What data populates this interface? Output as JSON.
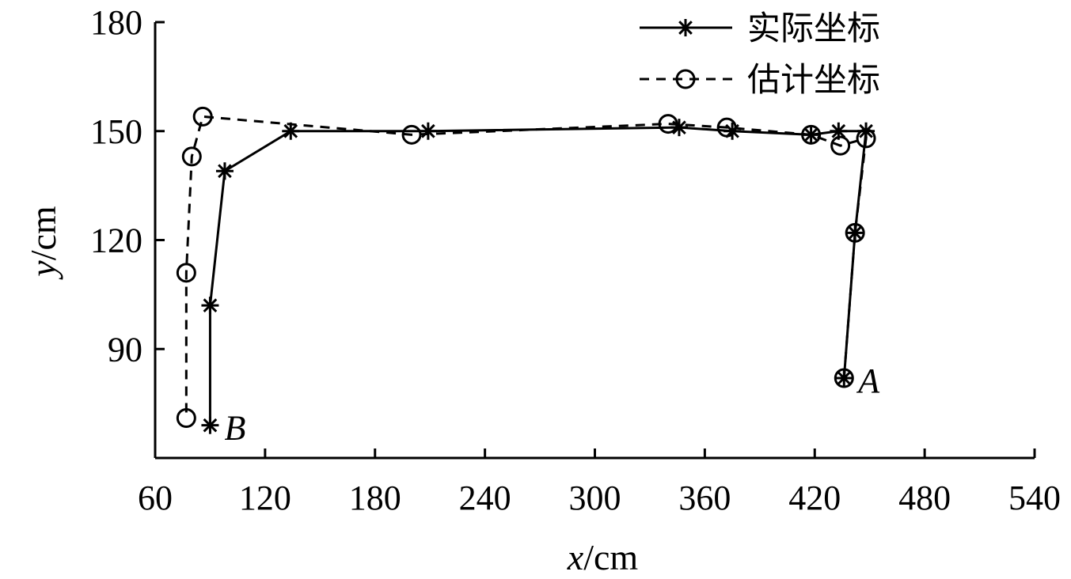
{
  "chart_data": {
    "type": "line",
    "xlabel": {
      "var": "x",
      "unit": "/cm"
    },
    "ylabel": {
      "var": "y",
      "unit": "/cm"
    },
    "xlim": [
      60,
      540
    ],
    "ylim": [
      60,
      180
    ],
    "xticks": [
      60,
      120,
      180,
      240,
      300,
      360,
      420,
      480,
      540
    ],
    "yticks": [
      90,
      120,
      150,
      180
    ],
    "grid": false,
    "legend_position": "top-right",
    "series": [
      {
        "name": "实际坐标",
        "line_style": "solid",
        "marker": "asterisk",
        "x": [
          436,
          442,
          448,
          433,
          418,
          375,
          346,
          209,
          134,
          98,
          90,
          90
        ],
        "y": [
          82,
          122,
          150,
          150,
          149,
          150,
          151,
          150,
          150,
          139,
          102,
          69
        ]
      },
      {
        "name": "估计坐标",
        "line_style": "dashed",
        "marker": "circle",
        "x": [
          436,
          442,
          448,
          434,
          418,
          372,
          340,
          200,
          86,
          80,
          77,
          77
        ],
        "y": [
          82,
          122,
          148,
          146,
          149,
          151,
          152,
          149,
          154,
          143,
          111,
          71
        ]
      }
    ],
    "annotations": [
      {
        "text": "A",
        "x": 436,
        "y": 82
      },
      {
        "text": "B",
        "x": 90,
        "y": 69
      }
    ]
  }
}
